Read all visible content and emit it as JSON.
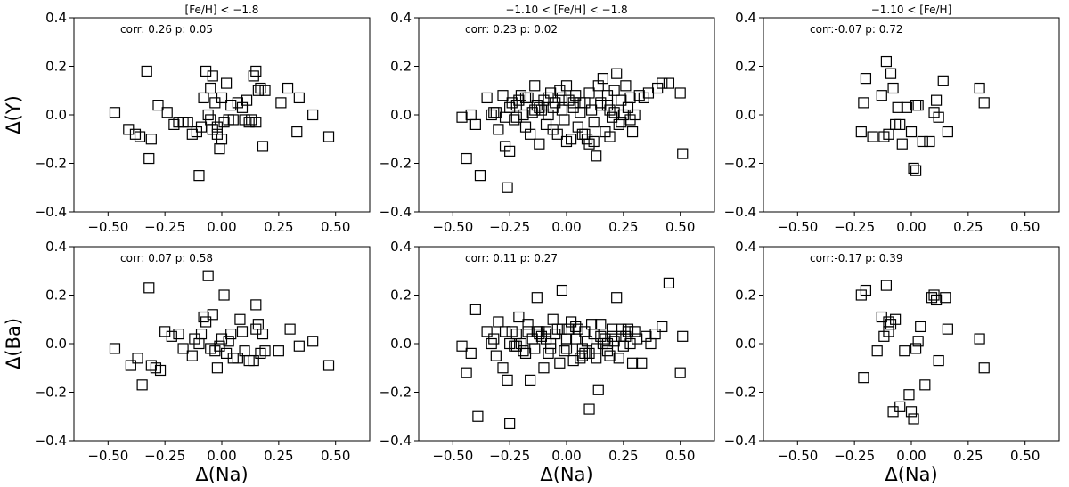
{
  "chart_data": [
    {
      "type": "scatter",
      "title": "[Fe/H] < −1.8",
      "xlabel": "",
      "ylabel": "Δ(Y)",
      "annotation": "corr: 0.26 p: 0.05",
      "xlim": [
        -0.65,
        0.65
      ],
      "ylim": [
        -0.4,
        0.4
      ],
      "xticks": [
        -0.5,
        -0.25,
        0.0,
        0.25,
        0.5
      ],
      "xtick_labels": [
        "−0.50",
        "−0.25",
        "0.00",
        "0.25",
        "0.50"
      ],
      "yticks": [
        -0.4,
        -0.2,
        0.0,
        0.2,
        0.4
      ],
      "ytick_labels": [
        "−0.4",
        "−0.2",
        "0.0",
        "0.2",
        "0.4"
      ],
      "marker": "square-open",
      "x": [
        -0.47,
        -0.41,
        -0.38,
        -0.36,
        -0.33,
        -0.32,
        -0.31,
        -0.28,
        -0.24,
        -0.21,
        -0.19,
        -0.17,
        -0.15,
        -0.13,
        -0.11,
        -0.1,
        -0.09,
        -0.08,
        -0.07,
        -0.06,
        -0.05,
        -0.05,
        -0.04,
        -0.04,
        -0.03,
        -0.02,
        -0.02,
        -0.01,
        0.0,
        0.0,
        0.01,
        0.02,
        0.03,
        0.04,
        0.05,
        0.07,
        0.09,
        0.1,
        0.11,
        0.12,
        0.13,
        0.14,
        0.15,
        0.15,
        0.16,
        0.17,
        0.18,
        0.19,
        0.26,
        0.29,
        0.33,
        0.34,
        0.4,
        0.47
      ],
      "y": [
        0.01,
        -0.06,
        -0.08,
        -0.09,
        0.18,
        -0.18,
        -0.1,
        0.04,
        0.01,
        -0.04,
        -0.03,
        -0.03,
        -0.03,
        -0.08,
        -0.07,
        -0.25,
        -0.05,
        0.07,
        0.18,
        0.0,
        0.11,
        -0.02,
        -0.06,
        0.16,
        0.05,
        -0.08,
        -0.05,
        -0.14,
        -0.1,
        0.07,
        -0.03,
        0.13,
        -0.02,
        0.04,
        -0.02,
        0.05,
        0.03,
        -0.02,
        0.06,
        -0.03,
        -0.02,
        0.16,
        0.18,
        -0.03,
        0.1,
        0.11,
        -0.13,
        0.1,
        0.05,
        0.11,
        -0.07,
        0.07,
        0.0,
        -0.09
      ]
    },
    {
      "type": "scatter",
      "title": "−1.10 < [Fe/H] < −1.8",
      "xlabel": "",
      "ylabel": "",
      "annotation": "corr: 0.23 p: 0.02",
      "xlim": [
        -0.65,
        0.65
      ],
      "ylim": [
        -0.4,
        0.4
      ],
      "xticks": [
        -0.5,
        -0.25,
        0.0,
        0.25,
        0.5
      ],
      "xtick_labels": [
        "−0.50",
        "−0.25",
        "0.00",
        "0.25",
        "0.50"
      ],
      "yticks": [
        -0.4,
        -0.2,
        0.0,
        0.2,
        0.4
      ],
      "ytick_labels": [
        "−0.4",
        "−0.2",
        "0.0",
        "0.2",
        "0.4"
      ],
      "marker": "square-open",
      "x": [
        -0.46,
        -0.44,
        -0.42,
        -0.4,
        -0.38,
        -0.35,
        -0.33,
        -0.31,
        -0.3,
        -0.28,
        -0.27,
        -0.26,
        -0.25,
        -0.25,
        -0.24,
        -0.23,
        -0.22,
        -0.21,
        -0.2,
        -0.19,
        -0.18,
        -0.17,
        -0.16,
        -0.15,
        -0.14,
        -0.13,
        -0.12,
        -0.11,
        -0.1,
        -0.09,
        -0.08,
        -0.07,
        -0.06,
        -0.05,
        -0.04,
        -0.03,
        -0.02,
        -0.01,
        0.0,
        0.01,
        0.02,
        0.03,
        0.04,
        0.05,
        0.06,
        0.07,
        0.08,
        0.09,
        0.1,
        0.11,
        0.12,
        0.13,
        0.14,
        0.15,
        0.16,
        0.17,
        0.18,
        0.19,
        0.2,
        0.21,
        0.22,
        0.23,
        0.24,
        0.25,
        0.26,
        0.27,
        0.28,
        0.29,
        0.3,
        0.32,
        0.34,
        0.36,
        0.4,
        0.42,
        0.45,
        0.5,
        0.51,
        -0.32,
        -0.22,
        -0.12,
        -0.02,
        0.08,
        0.18,
        0.28,
        -0.18,
        -0.06,
        0.03,
        0.12,
        0.21,
        -0.27,
        -0.14,
        0.0,
        0.06,
        0.15,
        0.24,
        -0.08,
        0.1,
        0.19
      ],
      "y": [
        -0.01,
        -0.18,
        0.0,
        -0.04,
        -0.25,
        0.07,
        0.0,
        0.01,
        -0.06,
        0.08,
        -0.13,
        -0.3,
        -0.15,
        0.03,
        0.05,
        -0.02,
        0.04,
        0.06,
        0.08,
        0.0,
        -0.05,
        0.07,
        -0.08,
        0.01,
        0.12,
        0.04,
        -0.12,
        0.02,
        0.06,
        -0.04,
        0.0,
        0.09,
        0.03,
        0.05,
        -0.08,
        0.1,
        0.02,
        -0.02,
        0.12,
        0.06,
        -0.1,
        0.03,
        0.08,
        -0.05,
        0.01,
        -0.08,
        0.05,
        -0.1,
        0.09,
        0.02,
        -0.03,
        -0.17,
        0.12,
        0.05,
        0.15,
        -0.07,
        0.08,
        0.02,
        -0.01,
        0.1,
        0.17,
        -0.04,
        0.06,
        0.0,
        0.12,
        0.03,
        0.07,
        -0.07,
        0.0,
        0.08,
        0.07,
        0.09,
        0.11,
        0.13,
        0.13,
        0.09,
        -0.16,
        0.01,
        -0.01,
        0.03,
        0.07,
        -0.08,
        0.04,
        -0.02,
        0.07,
        -0.06,
        0.05,
        -0.11,
        0.01,
        -0.01,
        0.02,
        -0.11,
        0.05,
        0.04,
        -0.03,
        0.07,
        -0.12,
        -0.09
      ]
    },
    {
      "type": "scatter",
      "title": "−1.10 < [Fe/H]",
      "xlabel": "",
      "ylabel": "",
      "annotation": "corr:-0.07 p: 0.72",
      "xlim": [
        -0.65,
        0.65
      ],
      "ylim": [
        -0.4,
        0.4
      ],
      "xticks": [
        -0.5,
        -0.25,
        0.0,
        0.25,
        0.5
      ],
      "xtick_labels": [
        "−0.50",
        "−0.25",
        "0.00",
        "0.25",
        "0.50"
      ],
      "yticks": [
        -0.4,
        -0.2,
        0.0,
        0.2,
        0.4
      ],
      "ytick_labels": [
        "−0.4",
        "−0.2",
        "0.0",
        "0.2",
        "0.4"
      ],
      "marker": "square-open",
      "x": [
        -0.22,
        -0.21,
        -0.2,
        -0.17,
        -0.13,
        -0.12,
        -0.11,
        -0.1,
        -0.09,
        -0.08,
        -0.07,
        -0.06,
        -0.05,
        -0.04,
        -0.02,
        0.0,
        0.01,
        0.02,
        0.02,
        0.03,
        0.05,
        0.08,
        0.1,
        0.11,
        0.12,
        0.14,
        0.16,
        0.3,
        0.32
      ],
      "y": [
        -0.07,
        0.05,
        0.15,
        -0.09,
        0.08,
        -0.09,
        0.22,
        -0.08,
        0.17,
        0.11,
        -0.04,
        0.03,
        -0.04,
        -0.12,
        0.03,
        -0.07,
        -0.22,
        -0.23,
        0.04,
        0.04,
        -0.11,
        -0.11,
        0.01,
        0.06,
        -0.01,
        0.14,
        -0.07,
        0.11,
        0.05
      ]
    },
    {
      "type": "scatter",
      "title": "",
      "xlabel": "Δ(Na)",
      "ylabel": "Δ(Ba)",
      "annotation": "corr: 0.07 p: 0.58",
      "xlim": [
        -0.65,
        0.65
      ],
      "ylim": [
        -0.4,
        0.4
      ],
      "xticks": [
        -0.5,
        -0.25,
        0.0,
        0.25,
        0.5
      ],
      "xtick_labels": [
        "−0.50",
        "−0.25",
        "0.00",
        "0.25",
        "0.50"
      ],
      "yticks": [
        -0.4,
        -0.2,
        0.0,
        0.2,
        0.4
      ],
      "ytick_labels": [
        "−0.4",
        "−0.2",
        "0.0",
        "0.2",
        "0.4"
      ],
      "marker": "square-open",
      "x": [
        -0.47,
        -0.4,
        -0.37,
        -0.35,
        -0.32,
        -0.31,
        -0.29,
        -0.27,
        -0.22,
        -0.19,
        -0.17,
        -0.13,
        -0.12,
        -0.09,
        -0.08,
        -0.07,
        -0.06,
        -0.05,
        -0.04,
        -0.03,
        -0.02,
        -0.01,
        0.0,
        0.01,
        0.02,
        0.03,
        0.04,
        0.05,
        0.07,
        0.08,
        0.09,
        0.1,
        0.12,
        0.14,
        0.15,
        0.15,
        0.16,
        0.17,
        0.18,
        0.19,
        0.25,
        0.3,
        0.34,
        0.4,
        0.47,
        -0.1,
        -0.25
      ],
      "y": [
        -0.02,
        -0.09,
        -0.06,
        -0.17,
        0.23,
        -0.09,
        -0.1,
        -0.11,
        0.03,
        0.04,
        -0.02,
        -0.05,
        0.02,
        0.04,
        0.11,
        0.09,
        0.28,
        -0.02,
        0.12,
        -0.03,
        -0.1,
        -0.01,
        0.02,
        0.2,
        -0.04,
        0.01,
        0.04,
        -0.06,
        -0.06,
        0.1,
        0.05,
        -0.03,
        -0.07,
        -0.07,
        0.16,
        0.06,
        0.08,
        -0.04,
        0.04,
        -0.03,
        -0.03,
        0.06,
        -0.01,
        0.01,
        -0.09,
        0.0,
        0.05
      ]
    },
    {
      "type": "scatter",
      "title": "",
      "xlabel": "Δ(Na)",
      "ylabel": "",
      "annotation": "corr: 0.11 p: 0.27",
      "xlim": [
        -0.65,
        0.65
      ],
      "ylim": [
        -0.4,
        0.4
      ],
      "xticks": [
        -0.5,
        -0.25,
        0.0,
        0.25,
        0.5
      ],
      "xtick_labels": [
        "−0.50",
        "−0.25",
        "0.00",
        "0.25",
        "0.50"
      ],
      "yticks": [
        -0.4,
        -0.2,
        0.0,
        0.2,
        0.4
      ],
      "ytick_labels": [
        "−0.4",
        "−0.2",
        "0.0",
        "0.2",
        "0.4"
      ],
      "marker": "square-open",
      "x": [
        -0.46,
        -0.44,
        -0.42,
        -0.4,
        -0.39,
        -0.35,
        -0.33,
        -0.31,
        -0.3,
        -0.28,
        -0.27,
        -0.26,
        -0.25,
        -0.24,
        -0.23,
        -0.22,
        -0.21,
        -0.2,
        -0.19,
        -0.18,
        -0.17,
        -0.16,
        -0.15,
        -0.14,
        -0.13,
        -0.12,
        -0.11,
        -0.1,
        -0.09,
        -0.08,
        -0.07,
        -0.06,
        -0.05,
        -0.04,
        -0.03,
        -0.02,
        -0.01,
        0.0,
        0.01,
        0.02,
        0.03,
        0.04,
        0.05,
        0.06,
        0.07,
        0.08,
        0.09,
        0.1,
        0.11,
        0.12,
        0.13,
        0.14,
        0.15,
        0.16,
        0.17,
        0.18,
        0.19,
        0.2,
        0.21,
        0.22,
        0.23,
        0.24,
        0.25,
        0.26,
        0.27,
        0.28,
        0.29,
        0.3,
        0.31,
        0.33,
        0.35,
        0.37,
        0.39,
        0.42,
        0.45,
        0.5,
        0.51,
        -0.32,
        -0.22,
        -0.12,
        -0.02,
        0.08,
        0.18,
        -0.17,
        -0.07,
        0.04,
        0.13,
        0.24,
        -0.25,
        -0.13,
        0.0,
        0.07,
        0.15,
        0.27,
        -0.09,
        0.1,
        0.2
      ],
      "y": [
        -0.01,
        -0.12,
        -0.04,
        0.14,
        -0.3,
        0.05,
        0.0,
        -0.05,
        0.09,
        -0.1,
        0.05,
        -0.15,
        -0.33,
        0.05,
        -0.01,
        0.04,
        0.11,
        0.0,
        -0.03,
        -0.04,
        0.08,
        -0.15,
        0.02,
        -0.02,
        0.19,
        0.05,
        0.03,
        -0.1,
        0.05,
        -0.04,
        0.0,
        0.1,
        0.04,
        0.06,
        -0.08,
        0.22,
        -0.03,
        -0.02,
        0.06,
        0.09,
        -0.07,
        0.02,
        0.06,
        -0.06,
        -0.02,
        0.05,
        0.01,
        -0.27,
        0.08,
        0.04,
        -0.02,
        -0.19,
        0.08,
        0.0,
        0.02,
        -0.03,
        -0.05,
        0.03,
        0.01,
        0.19,
        -0.06,
        0.06,
        -0.01,
        0.03,
        0.06,
        0.0,
        -0.08,
        0.05,
        0.02,
        -0.08,
        0.03,
        0.0,
        0.04,
        0.07,
        0.25,
        -0.12,
        0.03,
        0.02,
        -0.01,
        0.04,
        0.06,
        -0.04,
        0.0,
        0.05,
        -0.02,
        0.07,
        -0.06,
        0.03,
        0.0,
        0.05,
        0.02,
        -0.05,
        0.03,
        0.05,
        0.02,
        -0.04,
        0.06
      ]
    },
    {
      "type": "scatter",
      "title": "",
      "xlabel": "Δ(Na)",
      "ylabel": "",
      "annotation": "corr:-0.17 p: 0.39",
      "xlim": [
        -0.65,
        0.65
      ],
      "ylim": [
        -0.4,
        0.4
      ],
      "xticks": [
        -0.5,
        -0.25,
        0.0,
        0.25,
        0.5
      ],
      "xtick_labels": [
        "−0.50",
        "−0.25",
        "0.00",
        "0.25",
        "0.50"
      ],
      "yticks": [
        -0.4,
        -0.2,
        0.0,
        0.2,
        0.4
      ],
      "ytick_labels": [
        "−0.4",
        "−0.2",
        "0.0",
        "0.2",
        "0.4"
      ],
      "marker": "square-open",
      "x": [
        -0.22,
        -0.21,
        -0.2,
        -0.15,
        -0.13,
        -0.12,
        -0.11,
        -0.1,
        -0.09,
        -0.08,
        -0.07,
        -0.05,
        -0.03,
        -0.01,
        0.0,
        0.01,
        0.02,
        0.04,
        0.06,
        0.09,
        0.1,
        0.11,
        0.12,
        0.15,
        0.16,
        0.3,
        0.32,
        0.03,
        -0.1
      ],
      "y": [
        0.2,
        -0.14,
        0.22,
        -0.03,
        0.11,
        0.03,
        0.24,
        0.09,
        0.08,
        -0.28,
        0.1,
        -0.26,
        -0.03,
        -0.21,
        -0.28,
        -0.31,
        -0.02,
        0.07,
        -0.17,
        0.19,
        0.2,
        0.18,
        -0.07,
        0.19,
        0.06,
        0.02,
        -0.1,
        0.01,
        0.05
      ]
    }
  ]
}
